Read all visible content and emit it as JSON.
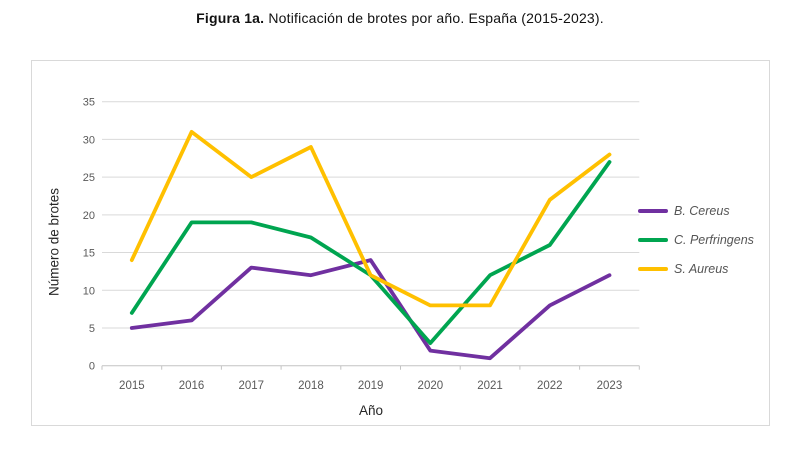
{
  "figure": {
    "title_bold": "Figura 1a.",
    "title_rest": " Notificación de brotes por año. España (2015-2023)."
  },
  "chart_data": {
    "type": "line",
    "title": "Figura 1a. Notificación de brotes por año. España (2015-2023).",
    "xlabel": "Año",
    "ylabel": "Número de brotes",
    "categories": [
      "2015",
      "2016",
      "2017",
      "2018",
      "2019",
      "2020",
      "2021",
      "2022",
      "2023"
    ],
    "ylim": [
      0,
      35
    ],
    "yticks": [
      0,
      5,
      10,
      15,
      20,
      25,
      30,
      35
    ],
    "grid": true,
    "legend_position": "right",
    "series": [
      {
        "name": "B. Cereus",
        "color": "#7030A0",
        "values": [
          5,
          6,
          13,
          12,
          14,
          2,
          1,
          8,
          12
        ]
      },
      {
        "name": "C. Perfringens",
        "color": "#00A550",
        "values": [
          7,
          19,
          19,
          17,
          12,
          3,
          12,
          16,
          27
        ]
      },
      {
        "name": "S. Aureus",
        "color": "#FFC000",
        "values": [
          14,
          31,
          25,
          29,
          12,
          8,
          8,
          22,
          28
        ]
      }
    ],
    "colors": {
      "gridline": "#d9d9d9",
      "axis": "#c3c3c3",
      "tick_text": "#595959",
      "axis_title_text": "#262626",
      "legend_text": "#555555"
    }
  }
}
